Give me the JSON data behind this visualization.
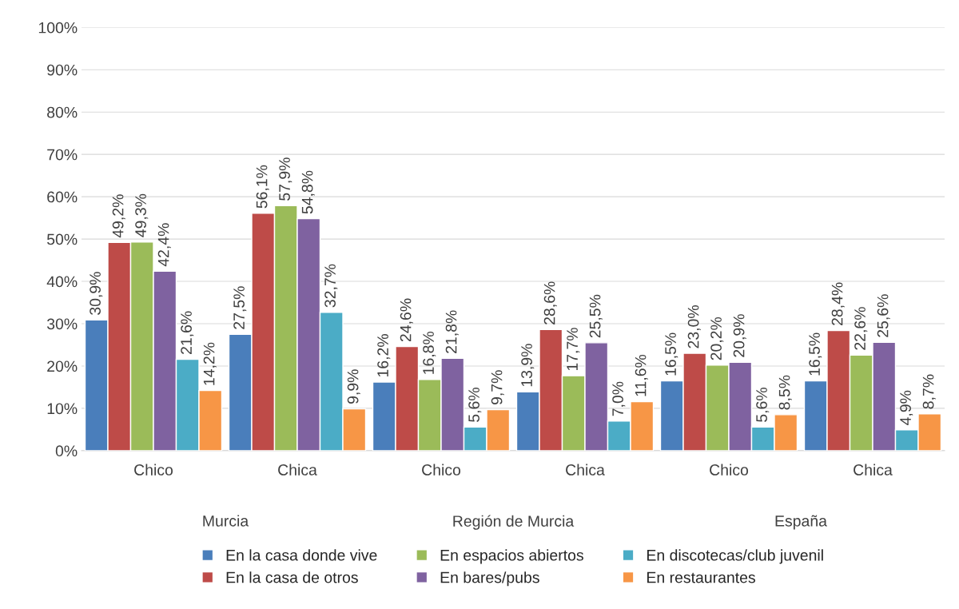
{
  "chart_data": {
    "type": "bar",
    "categories": [
      "Chico",
      "Chica",
      "Chico",
      "Chica",
      "Chico",
      "Chica"
    ],
    "annotations": [
      "Murcia",
      "Región de Murcia",
      "España"
    ],
    "series": [
      {
        "name": "En la casa donde vive",
        "color": "#4a7ebb",
        "values": [
          30.9,
          27.5,
          16.2,
          13.9,
          16.5,
          16.5
        ],
        "value_labels": [
          "30,9%",
          "27,5%",
          "16,2%",
          "13,9%",
          "16,5%",
          "16,5%"
        ]
      },
      {
        "name": "En la casa de otros",
        "color": "#be4b48",
        "values": [
          49.2,
          56.1,
          24.6,
          28.6,
          23.0,
          28.4
        ],
        "value_labels": [
          "49,2%",
          "56,1%",
          "24,6%",
          "28,6%",
          "23,0%",
          "28,4%"
        ]
      },
      {
        "name": "En espacios abiertos",
        "color": "#9bbb59",
        "values": [
          49.3,
          57.9,
          16.8,
          17.7,
          20.2,
          22.6
        ],
        "value_labels": [
          "49,3%",
          "57,9%",
          "16,8%",
          "17,7%",
          "20,2%",
          "22,6%"
        ]
      },
      {
        "name": "En bares/pubs",
        "color": "#7f62a0",
        "values": [
          42.4,
          54.8,
          21.8,
          25.5,
          20.9,
          25.6
        ],
        "value_labels": [
          "42,4%",
          "54,8%",
          "21,8%",
          "25,5%",
          "20,9%",
          "25,6%"
        ]
      },
      {
        "name": "En discotecas/club juvenil",
        "color": "#4bacc6",
        "values": [
          21.6,
          32.7,
          5.6,
          7.0,
          5.6,
          4.9
        ],
        "value_labels": [
          "21,6%",
          "32,7%",
          "5,6%",
          "7,0%",
          "5,6%",
          "4,9%"
        ]
      },
      {
        "name": "En restaurantes",
        "color": "#f79646",
        "values": [
          14.2,
          9.9,
          9.7,
          11.6,
          8.5,
          8.7
        ],
        "value_labels": [
          "14,2%",
          "9,9%",
          "9,7%",
          "11,6%",
          "8,5%",
          "8,7%"
        ]
      }
    ],
    "ylim": [
      0,
      100
    ],
    "yticks": [
      {
        "value": 0,
        "label": "0%"
      },
      {
        "value": 10,
        "label": "10%"
      },
      {
        "value": 20,
        "label": "20%"
      },
      {
        "value": 30,
        "label": "30%"
      },
      {
        "value": 40,
        "label": "40%"
      },
      {
        "value": 50,
        "label": "50%"
      },
      {
        "value": 60,
        "label": "60%"
      },
      {
        "value": 70,
        "label": "70%"
      },
      {
        "value": 80,
        "label": "80%"
      },
      {
        "value": 90,
        "label": "90%"
      },
      {
        "value": 100,
        "label": "100%"
      }
    ],
    "grid": "y",
    "legend": "bottom"
  }
}
